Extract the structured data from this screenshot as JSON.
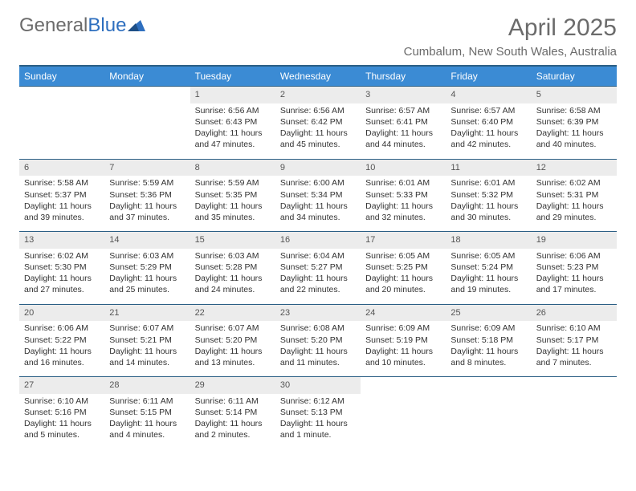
{
  "brand": {
    "word1": "General",
    "word2": "Blue"
  },
  "title": "April 2025",
  "location": "Cumbalum, New South Wales, Australia",
  "colors": {
    "header_bg": "#3b8bd4",
    "header_border": "#2b5f85",
    "daynum_bg": "#ececec",
    "text": "#333333",
    "muted": "#6b6b6b"
  },
  "weekdays": [
    "Sunday",
    "Monday",
    "Tuesday",
    "Wednesday",
    "Thursday",
    "Friday",
    "Saturday"
  ],
  "weeks": [
    {
      "days": [
        null,
        null,
        {
          "n": "1",
          "sr": "Sunrise: 6:56 AM",
          "ss": "Sunset: 6:43 PM",
          "dl1": "Daylight: 11 hours",
          "dl2": "and 47 minutes."
        },
        {
          "n": "2",
          "sr": "Sunrise: 6:56 AM",
          "ss": "Sunset: 6:42 PM",
          "dl1": "Daylight: 11 hours",
          "dl2": "and 45 minutes."
        },
        {
          "n": "3",
          "sr": "Sunrise: 6:57 AM",
          "ss": "Sunset: 6:41 PM",
          "dl1": "Daylight: 11 hours",
          "dl2": "and 44 minutes."
        },
        {
          "n": "4",
          "sr": "Sunrise: 6:57 AM",
          "ss": "Sunset: 6:40 PM",
          "dl1": "Daylight: 11 hours",
          "dl2": "and 42 minutes."
        },
        {
          "n": "5",
          "sr": "Sunrise: 6:58 AM",
          "ss": "Sunset: 6:39 PM",
          "dl1": "Daylight: 11 hours",
          "dl2": "and 40 minutes."
        }
      ]
    },
    {
      "days": [
        {
          "n": "6",
          "sr": "Sunrise: 5:58 AM",
          "ss": "Sunset: 5:37 PM",
          "dl1": "Daylight: 11 hours",
          "dl2": "and 39 minutes."
        },
        {
          "n": "7",
          "sr": "Sunrise: 5:59 AM",
          "ss": "Sunset: 5:36 PM",
          "dl1": "Daylight: 11 hours",
          "dl2": "and 37 minutes."
        },
        {
          "n": "8",
          "sr": "Sunrise: 5:59 AM",
          "ss": "Sunset: 5:35 PM",
          "dl1": "Daylight: 11 hours",
          "dl2": "and 35 minutes."
        },
        {
          "n": "9",
          "sr": "Sunrise: 6:00 AM",
          "ss": "Sunset: 5:34 PM",
          "dl1": "Daylight: 11 hours",
          "dl2": "and 34 minutes."
        },
        {
          "n": "10",
          "sr": "Sunrise: 6:01 AM",
          "ss": "Sunset: 5:33 PM",
          "dl1": "Daylight: 11 hours",
          "dl2": "and 32 minutes."
        },
        {
          "n": "11",
          "sr": "Sunrise: 6:01 AM",
          "ss": "Sunset: 5:32 PM",
          "dl1": "Daylight: 11 hours",
          "dl2": "and 30 minutes."
        },
        {
          "n": "12",
          "sr": "Sunrise: 6:02 AM",
          "ss": "Sunset: 5:31 PM",
          "dl1": "Daylight: 11 hours",
          "dl2": "and 29 minutes."
        }
      ]
    },
    {
      "days": [
        {
          "n": "13",
          "sr": "Sunrise: 6:02 AM",
          "ss": "Sunset: 5:30 PM",
          "dl1": "Daylight: 11 hours",
          "dl2": "and 27 minutes."
        },
        {
          "n": "14",
          "sr": "Sunrise: 6:03 AM",
          "ss": "Sunset: 5:29 PM",
          "dl1": "Daylight: 11 hours",
          "dl2": "and 25 minutes."
        },
        {
          "n": "15",
          "sr": "Sunrise: 6:03 AM",
          "ss": "Sunset: 5:28 PM",
          "dl1": "Daylight: 11 hours",
          "dl2": "and 24 minutes."
        },
        {
          "n": "16",
          "sr": "Sunrise: 6:04 AM",
          "ss": "Sunset: 5:27 PM",
          "dl1": "Daylight: 11 hours",
          "dl2": "and 22 minutes."
        },
        {
          "n": "17",
          "sr": "Sunrise: 6:05 AM",
          "ss": "Sunset: 5:25 PM",
          "dl1": "Daylight: 11 hours",
          "dl2": "and 20 minutes."
        },
        {
          "n": "18",
          "sr": "Sunrise: 6:05 AM",
          "ss": "Sunset: 5:24 PM",
          "dl1": "Daylight: 11 hours",
          "dl2": "and 19 minutes."
        },
        {
          "n": "19",
          "sr": "Sunrise: 6:06 AM",
          "ss": "Sunset: 5:23 PM",
          "dl1": "Daylight: 11 hours",
          "dl2": "and 17 minutes."
        }
      ]
    },
    {
      "days": [
        {
          "n": "20",
          "sr": "Sunrise: 6:06 AM",
          "ss": "Sunset: 5:22 PM",
          "dl1": "Daylight: 11 hours",
          "dl2": "and 16 minutes."
        },
        {
          "n": "21",
          "sr": "Sunrise: 6:07 AM",
          "ss": "Sunset: 5:21 PM",
          "dl1": "Daylight: 11 hours",
          "dl2": "and 14 minutes."
        },
        {
          "n": "22",
          "sr": "Sunrise: 6:07 AM",
          "ss": "Sunset: 5:20 PM",
          "dl1": "Daylight: 11 hours",
          "dl2": "and 13 minutes."
        },
        {
          "n": "23",
          "sr": "Sunrise: 6:08 AM",
          "ss": "Sunset: 5:20 PM",
          "dl1": "Daylight: 11 hours",
          "dl2": "and 11 minutes."
        },
        {
          "n": "24",
          "sr": "Sunrise: 6:09 AM",
          "ss": "Sunset: 5:19 PM",
          "dl1": "Daylight: 11 hours",
          "dl2": "and 10 minutes."
        },
        {
          "n": "25",
          "sr": "Sunrise: 6:09 AM",
          "ss": "Sunset: 5:18 PM",
          "dl1": "Daylight: 11 hours",
          "dl2": "and 8 minutes."
        },
        {
          "n": "26",
          "sr": "Sunrise: 6:10 AM",
          "ss": "Sunset: 5:17 PM",
          "dl1": "Daylight: 11 hours",
          "dl2": "and 7 minutes."
        }
      ]
    },
    {
      "days": [
        {
          "n": "27",
          "sr": "Sunrise: 6:10 AM",
          "ss": "Sunset: 5:16 PM",
          "dl1": "Daylight: 11 hours",
          "dl2": "and 5 minutes."
        },
        {
          "n": "28",
          "sr": "Sunrise: 6:11 AM",
          "ss": "Sunset: 5:15 PM",
          "dl1": "Daylight: 11 hours",
          "dl2": "and 4 minutes."
        },
        {
          "n": "29",
          "sr": "Sunrise: 6:11 AM",
          "ss": "Sunset: 5:14 PM",
          "dl1": "Daylight: 11 hours",
          "dl2": "and 2 minutes."
        },
        {
          "n": "30",
          "sr": "Sunrise: 6:12 AM",
          "ss": "Sunset: 5:13 PM",
          "dl1": "Daylight: 11 hours",
          "dl2": "and 1 minute."
        },
        null,
        null,
        null
      ]
    }
  ]
}
